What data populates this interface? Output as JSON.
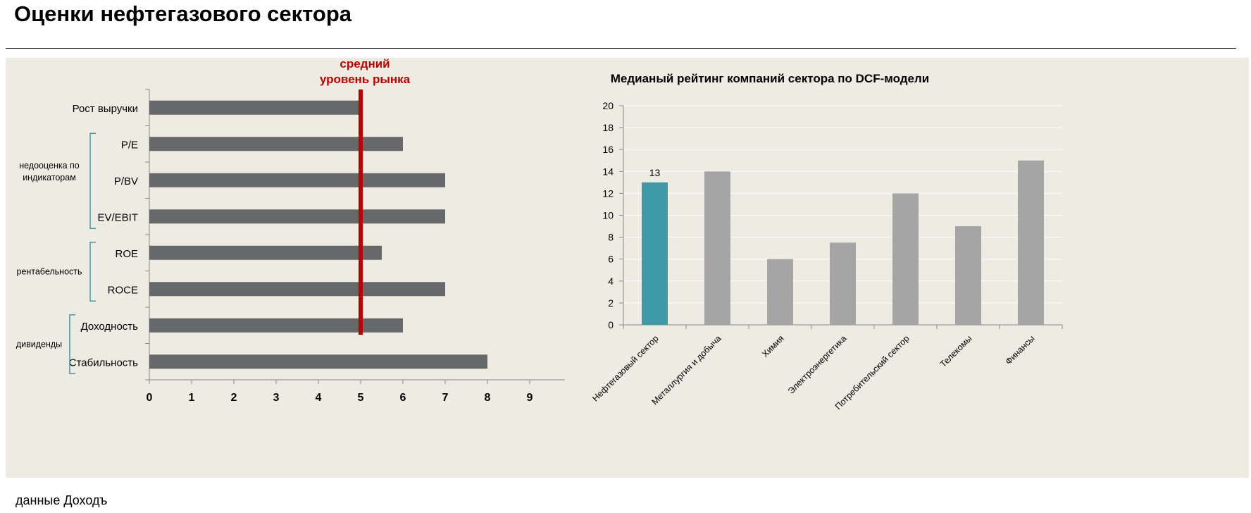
{
  "page": {
    "title": "Оценки нефтегазового сектора",
    "source": "данные Доходъ"
  },
  "chart_data": [
    {
      "type": "bar",
      "orientation": "horizontal",
      "categories": [
        "Рост выручки",
        "P/E",
        "P/BV",
        "EV/EBIT",
        "ROE",
        "ROCE",
        "Доходность",
        "Стабильность"
      ],
      "values": [
        5,
        6,
        7,
        7,
        5.5,
        7,
        6,
        8
      ],
      "xlim": [
        0,
        10
      ],
      "xticks": [
        0,
        1,
        2,
        3,
        4,
        5,
        6,
        7,
        8,
        9
      ],
      "bar_color": "#67686a",
      "groups": [
        {
          "label": "недооценка по индикаторам",
          "members": [
            "P/E",
            "P/BV",
            "EV/EBIT"
          ]
        },
        {
          "label": "рентабельность",
          "members": [
            "ROE",
            "ROCE"
          ]
        },
        {
          "label": "дивиденды",
          "members": [
            "Доходность",
            "Стабильность"
          ]
        }
      ],
      "reference_line": {
        "value": 5,
        "label": "средний уровень рынка",
        "color": "#c00000"
      }
    },
    {
      "type": "bar",
      "title": "Медианый рейтинг компаний сектора по DCF-модели",
      "categories": [
        "Нефтегазовый сектор",
        "Металлургия и добыча",
        "Химия",
        "Электроэнергетика",
        "Потребительский сектор",
        "Телекомы",
        "Финансы"
      ],
      "values": [
        13,
        14,
        6,
        7.5,
        12,
        9,
        15
      ],
      "ylim": [
        0,
        20
      ],
      "yticks": [
        0,
        2,
        4,
        6,
        8,
        10,
        12,
        14,
        16,
        18,
        20
      ],
      "grid": true,
      "highlight": {
        "index": 0,
        "label": "13",
        "color": "#3d9aa6"
      },
      "bar_color": "#a5a5a5"
    }
  ]
}
